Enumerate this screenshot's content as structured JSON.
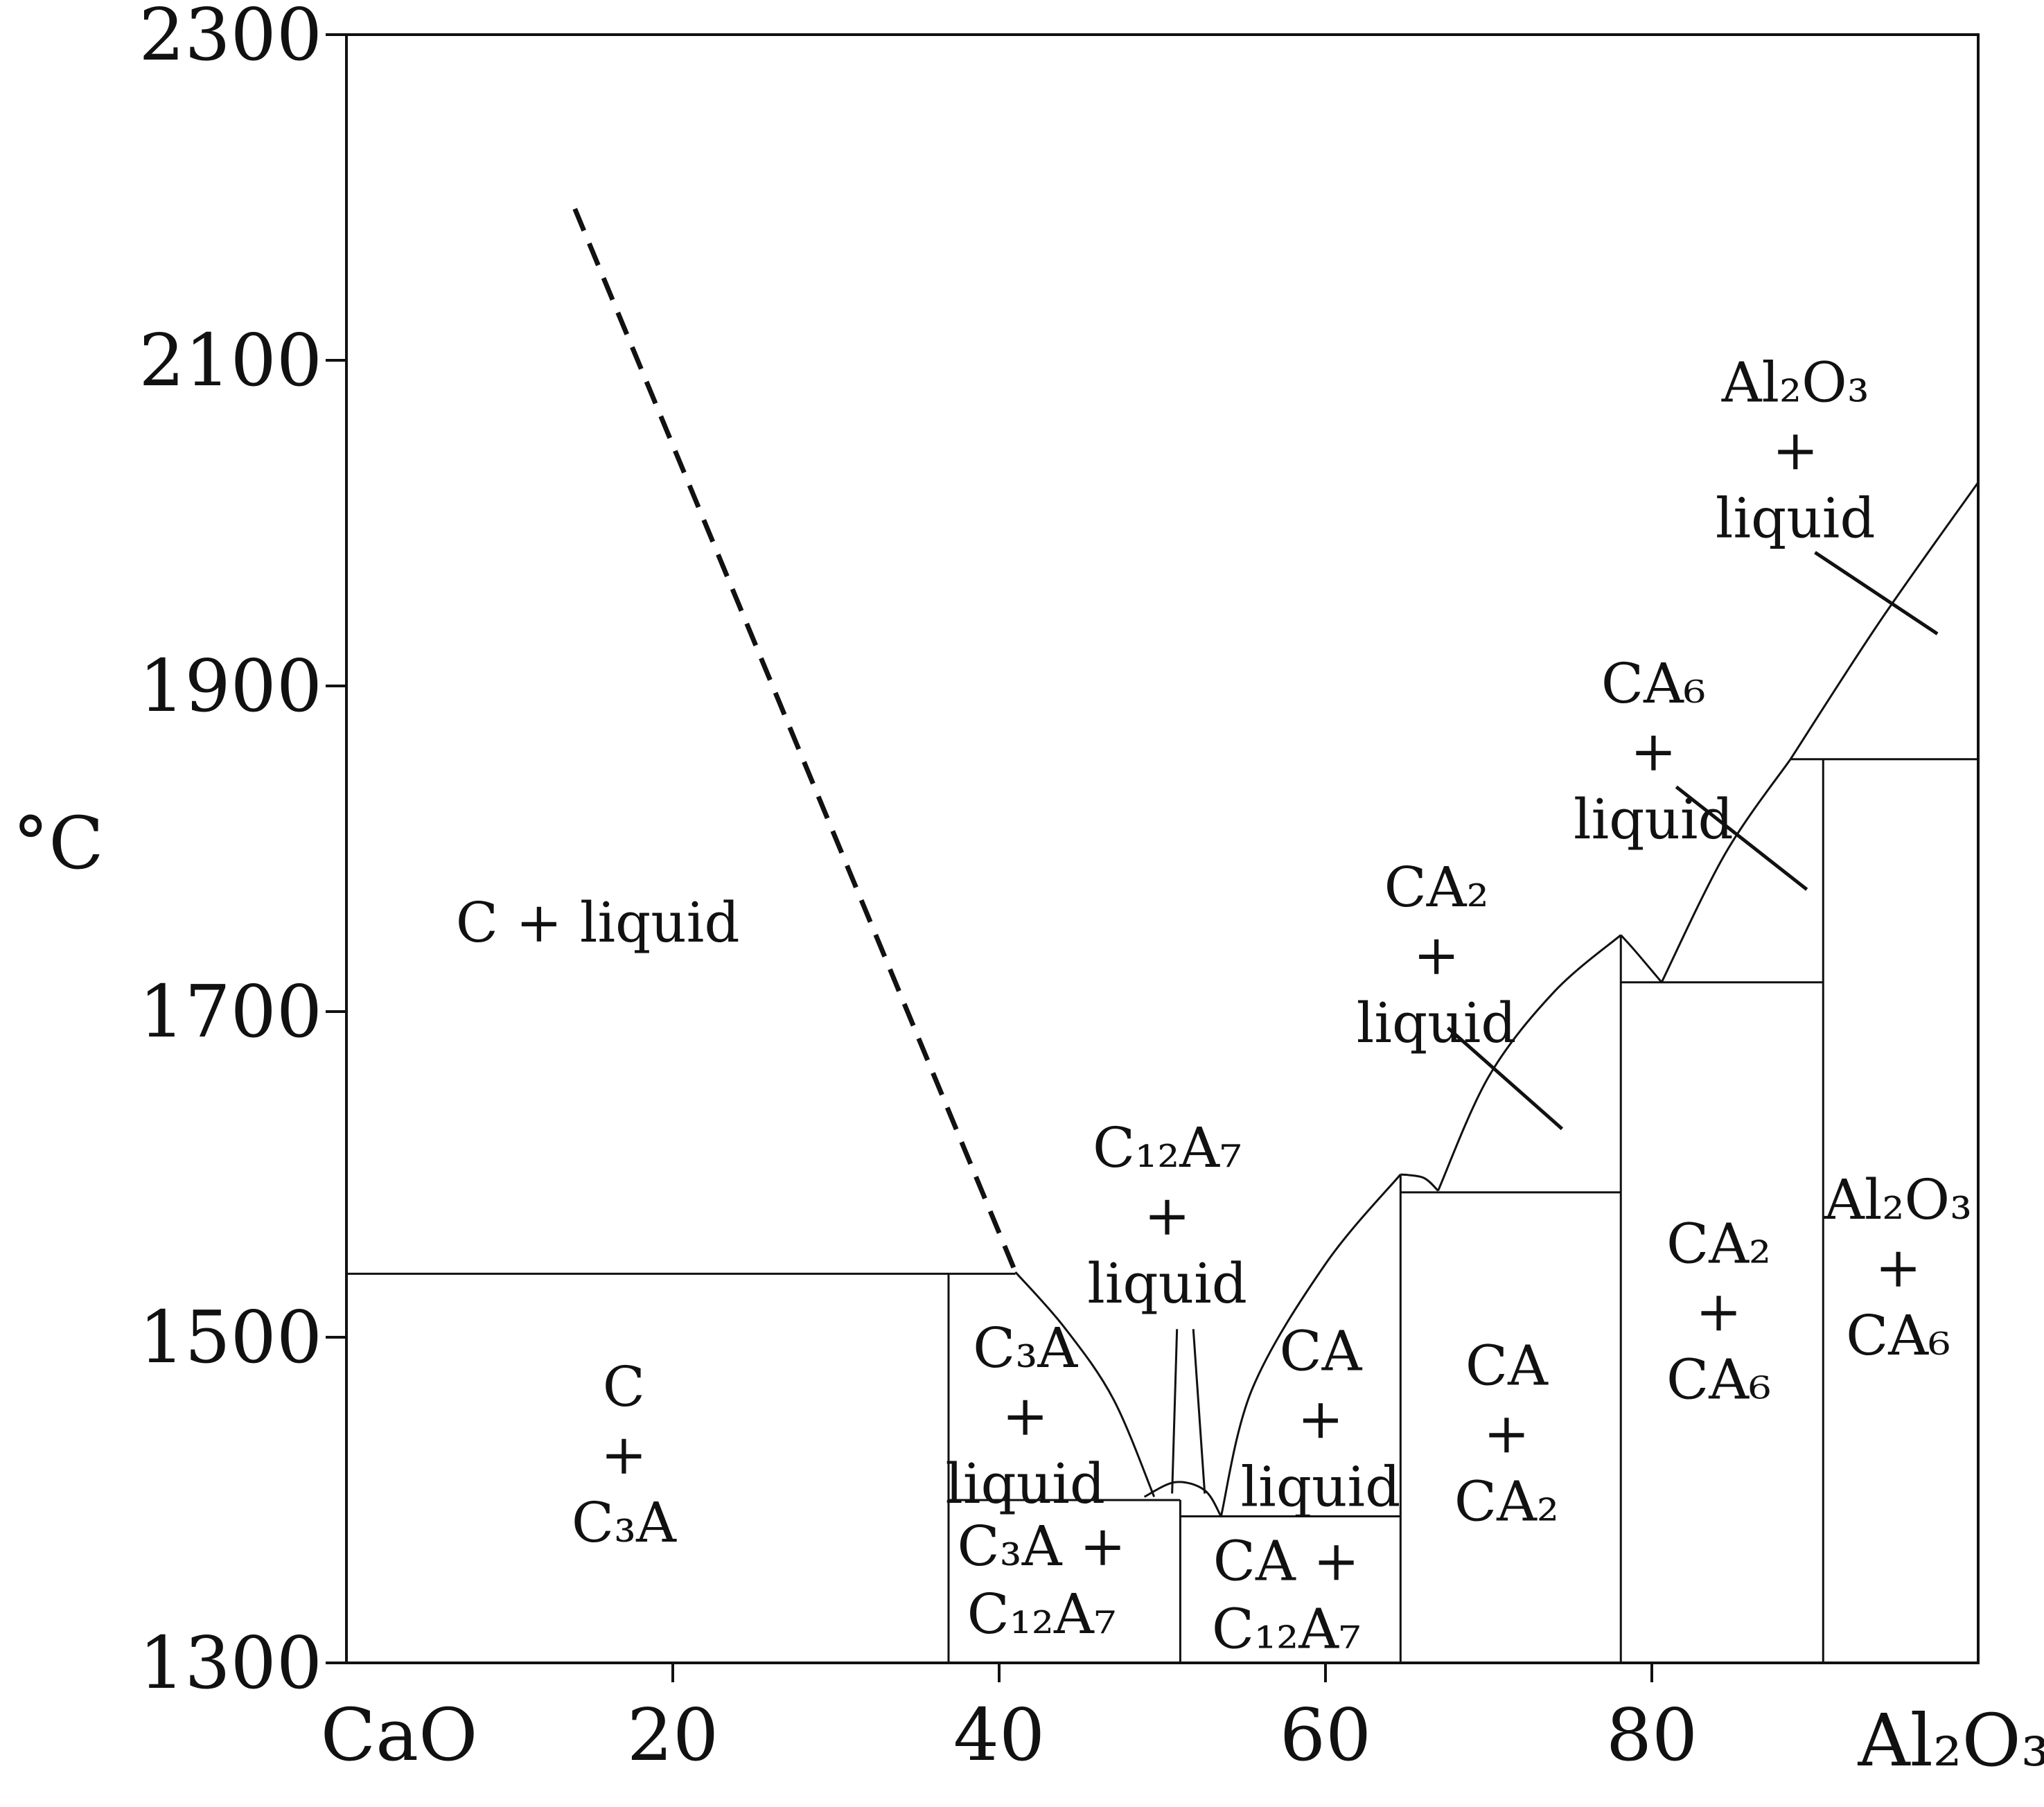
{
  "chart_data": {
    "type": "phase-diagram",
    "title": "",
    "xlabel": "",
    "ylabel": "°C",
    "xlim": [
      0,
      100
    ],
    "ylim": [
      1300,
      2300
    ],
    "x_ticks": [
      20,
      40,
      60,
      80
    ],
    "y_ticks": [
      1300,
      1500,
      1700,
      1900,
      2100,
      2300
    ],
    "x_end_labels": {
      "left": "CaO",
      "right": "Al₂O₃"
    },
    "grid": false,
    "legend": "none",
    "boundaries": [
      {
        "name": "C liquidus (dashed)",
        "style": "dashed",
        "points": [
          [
            14,
            2193
          ],
          [
            41,
            1540
          ]
        ]
      },
      {
        "name": "C3A liquidus",
        "style": "solid",
        "points": [
          [
            41,
            1540
          ],
          [
            44,
            1506
          ],
          [
            47,
            1462
          ],
          [
            49.5,
            1402
          ]
        ]
      },
      {
        "name": "C12A7 liquidus",
        "style": "solid",
        "points": [
          [
            48.9,
            1402
          ],
          [
            50.8,
            1411
          ],
          [
            52.6,
            1406
          ],
          [
            53.6,
            1390
          ]
        ]
      },
      {
        "name": "CA liquidus",
        "style": "solid",
        "points": [
          [
            53.6,
            1390
          ],
          [
            55.5,
            1468
          ],
          [
            60,
            1545
          ],
          [
            64.6,
            1600
          ]
        ]
      },
      {
        "name": "CA2 liquidus small arc",
        "style": "solid",
        "points": [
          [
            64.6,
            1600
          ],
          [
            66,
            1598
          ],
          [
            66.9,
            1590
          ]
        ]
      },
      {
        "name": "CA2 liquidus",
        "style": "solid",
        "points": [
          [
            66.9,
            1590
          ],
          [
            70,
            1660
          ],
          [
            74,
            1712
          ],
          [
            78.1,
            1747
          ]
        ]
      },
      {
        "name": "CA6 liquidus small arc",
        "style": "solid",
        "points": [
          [
            78.1,
            1747
          ],
          [
            79,
            1737
          ],
          [
            80.6,
            1718
          ]
        ]
      },
      {
        "name": "CA6 liquidus",
        "style": "solid",
        "points": [
          [
            80.6,
            1718
          ],
          [
            84.5,
            1797
          ],
          [
            88.5,
            1855
          ]
        ]
      },
      {
        "name": "Al2O3 liquidus",
        "style": "solid",
        "points": [
          [
            88.5,
            1855
          ],
          [
            94,
            1940
          ],
          [
            100,
            2025
          ]
        ]
      },
      {
        "name": "C + C3A / C3A + liquid solidus",
        "style": "solid",
        "points": [
          [
            0,
            1539
          ],
          [
            41,
            1539
          ]
        ]
      },
      {
        "name": "C3A + C12A7 solidus",
        "style": "solid",
        "points": [
          [
            36.9,
            1400
          ],
          [
            51.1,
            1400
          ]
        ]
      },
      {
        "name": "CA + C12A7 solidus",
        "style": "solid",
        "points": [
          [
            51.1,
            1390
          ],
          [
            64.6,
            1390
          ]
        ]
      },
      {
        "name": "CA + CA2 solidus",
        "style": "solid",
        "points": [
          [
            64.6,
            1589
          ],
          [
            78.1,
            1589
          ]
        ]
      },
      {
        "name": "CA2 + CA6 solidus",
        "style": "solid",
        "points": [
          [
            78.1,
            1718
          ],
          [
            90.5,
            1718
          ]
        ]
      },
      {
        "name": "Al2O3 + CA6 solidus",
        "style": "solid",
        "points": [
          [
            88.5,
            1855
          ],
          [
            100,
            1855
          ]
        ]
      },
      {
        "name": "C3A composition",
        "style": "solid",
        "points": [
          [
            36.9,
            1300
          ],
          [
            36.9,
            1539
          ]
        ]
      },
      {
        "name": "C12A7 composition",
        "style": "solid",
        "points": [
          [
            51.1,
            1300
          ],
          [
            51.1,
            1400
          ]
        ]
      },
      {
        "name": "CA composition",
        "style": "solid",
        "points": [
          [
            64.6,
            1300
          ],
          [
            64.6,
            1600
          ]
        ]
      },
      {
        "name": "CA2 composition",
        "style": "solid",
        "points": [
          [
            78.1,
            1300
          ],
          [
            78.1,
            1747
          ]
        ]
      },
      {
        "name": "CA6 composition",
        "style": "solid",
        "points": [
          [
            90.5,
            1300
          ],
          [
            90.5,
            1855
          ]
        ]
      },
      {
        "name": "C12A7 + liquid left",
        "style": "solid",
        "points": [
          [
            50.9,
            1505
          ],
          [
            50.6,
            1404
          ]
        ]
      },
      {
        "name": "C12A7 + liquid right",
        "style": "solid",
        "points": [
          [
            51.9,
            1505
          ],
          [
            52.6,
            1404
          ]
        ]
      }
    ],
    "leader_lines": [
      [
        [
          67.5,
          1690
        ],
        [
          74.5,
          1628
        ]
      ],
      [
        [
          81.5,
          1838
        ],
        [
          89.5,
          1775
        ]
      ],
      [
        [
          90,
          1982
        ],
        [
          97.5,
          1932
        ]
      ]
    ],
    "regions": [
      {
        "id": "c-liquid",
        "lines": [
          "C + liquid"
        ],
        "at": [
          15.4,
          1755
        ]
      },
      {
        "id": "c-c3a",
        "lines": [
          "C",
          "+",
          "C₃A"
        ],
        "at": [
          17,
          1428
        ]
      },
      {
        "id": "c3a-liquid",
        "lines": [
          "C₃A",
          "+",
          "liquid"
        ],
        "at": [
          41.6,
          1452
        ]
      },
      {
        "id": "c3a-c12a7",
        "lines": [
          "C₃A +",
          "C₁₂A₇"
        ],
        "at": [
          42.6,
          1351
        ]
      },
      {
        "id": "c12a7-liquid",
        "lines": [
          "C₁₂A₇",
          "+",
          "liquid"
        ],
        "at": [
          50.3,
          1575
        ]
      },
      {
        "id": "ca-liquid",
        "lines": [
          "CA",
          "+",
          "liquid"
        ],
        "at": [
          59.7,
          1450
        ]
      },
      {
        "id": "ca-c12a7",
        "lines": [
          "CA +",
          "C₁₂A₇"
        ],
        "at": [
          57.6,
          1342
        ]
      },
      {
        "id": "ca-ca2",
        "lines": [
          "CA",
          "+",
          "CA₂"
        ],
        "at": [
          71.1,
          1441
        ]
      },
      {
        "id": "ca2-liquid",
        "lines": [
          "CA₂",
          "+",
          "liquid"
        ],
        "at": [
          66.8,
          1735
        ]
      },
      {
        "id": "ca2-ca6",
        "lines": [
          "CA₂",
          "+",
          "CA₆"
        ],
        "at": [
          84.1,
          1516
        ]
      },
      {
        "id": "ca6-liquid",
        "lines": [
          "CA₆",
          "+",
          "liquid"
        ],
        "at": [
          80.1,
          1860
        ]
      },
      {
        "id": "al2o3-ca6",
        "lines": [
          "Al₂O₃",
          "+",
          "CA₆"
        ],
        "at": [
          95.1,
          1543
        ]
      },
      {
        "id": "al2o3-liquid",
        "lines": [
          "Al₂O₃",
          "+",
          "liquid"
        ],
        "at": [
          88.8,
          2045
        ]
      }
    ]
  }
}
